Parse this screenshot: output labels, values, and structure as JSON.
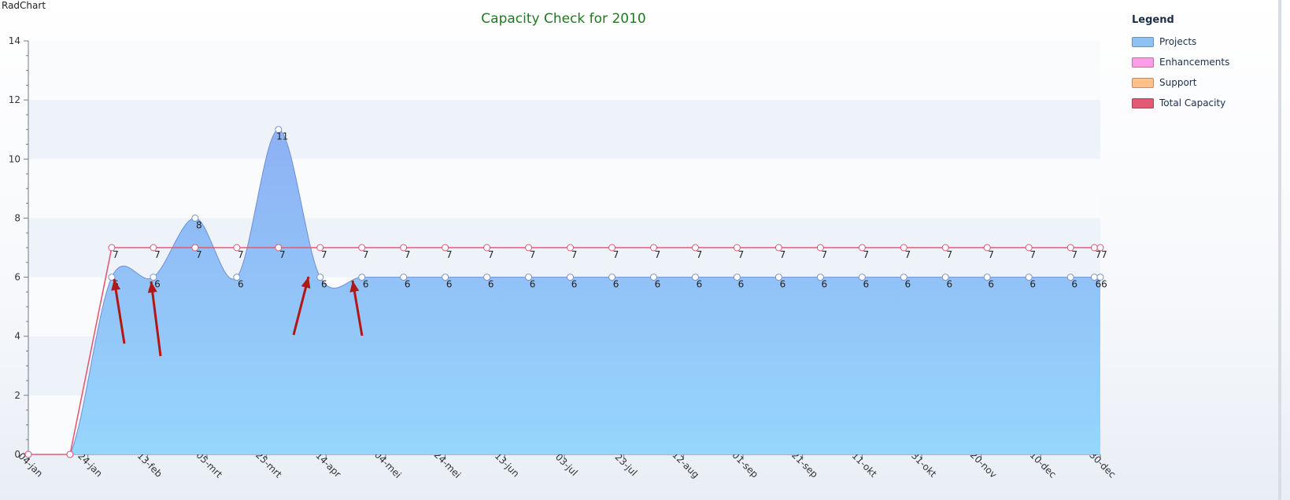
{
  "app_label": "RadChart",
  "chart_data": {
    "type": "area",
    "title": "Capacity Check for 2010",
    "ylim": [
      0,
      14
    ],
    "yticks": [
      0,
      2,
      4,
      6,
      8,
      10,
      12,
      14
    ],
    "x_labels": [
      "04-jan",
      "24-jan",
      "13-feb",
      "05-mrt",
      "25-mrt",
      "14-apr",
      "04-mei",
      "24-mei",
      "13-jun",
      "03-jul",
      "23-jul",
      "12-aug",
      "01-sep",
      "21-sep",
      "11-okt",
      "31-okt",
      "20-nov",
      "10-dec",
      "30-dec"
    ],
    "x_range": [
      "2010-01-04",
      "2010-12-30"
    ],
    "x_dates": [
      "2010-01-04",
      "2010-01-18",
      "2010-02-01",
      "2010-02-15",
      "2010-03-01",
      "2010-03-15",
      "2010-03-29",
      "2010-04-12",
      "2010-04-26",
      "2010-05-10",
      "2010-05-24",
      "2010-06-07",
      "2010-06-21",
      "2010-07-05",
      "2010-07-19",
      "2010-08-02",
      "2010-08-16",
      "2010-08-30",
      "2010-09-13",
      "2010-09-27",
      "2010-10-11",
      "2010-10-25",
      "2010-11-08",
      "2010-11-22",
      "2010-12-06",
      "2010-12-20",
      "2010-12-28",
      "2010-12-30"
    ],
    "series": [
      {
        "name": "Projects",
        "color": "#8fc1f5",
        "values": [
          0,
          0,
          6,
          6,
          8,
          6,
          11,
          6,
          6,
          6,
          6,
          6,
          6,
          6,
          6,
          6,
          6,
          6,
          6,
          6,
          6,
          6,
          6,
          6,
          6,
          6,
          6,
          6
        ],
        "labels": [
          "",
          "",
          "6",
          "6",
          "8",
          "6",
          "11",
          "6",
          "6",
          "6",
          "6",
          "6",
          "6",
          "6",
          "6",
          "6",
          "6",
          "6",
          "6",
          "6",
          "6",
          "6",
          "6",
          "6",
          "6",
          "6",
          "6",
          "6"
        ]
      },
      {
        "name": "Total Capacity",
        "color": "#e25a74",
        "values": [
          0,
          0,
          7,
          7,
          7,
          7,
          7,
          7,
          7,
          7,
          7,
          7,
          7,
          7,
          7,
          7,
          7,
          7,
          7,
          7,
          7,
          7,
          7,
          7,
          7,
          7,
          7,
          7
        ],
        "labels": [
          "",
          "",
          "7",
          "7",
          "7",
          "7",
          "7",
          "7",
          "7",
          "7",
          "7",
          "7",
          "7",
          "7",
          "7",
          "7",
          "7",
          "7",
          "7",
          "7",
          "7",
          "7",
          "7",
          "7",
          "7",
          "7",
          "7",
          "7"
        ]
      }
    ],
    "legend": {
      "title": "Legend",
      "position": "right",
      "items": [
        {
          "label": "Projects",
          "color": "#8fc1f5"
        },
        {
          "label": "Enhancements",
          "color": "#ff9ce6"
        },
        {
          "label": "Support",
          "color": "#ffc08a"
        },
        {
          "label": "Total Capacity",
          "color": "#e25a74"
        }
      ]
    },
    "annotation_color": "#b01818"
  }
}
